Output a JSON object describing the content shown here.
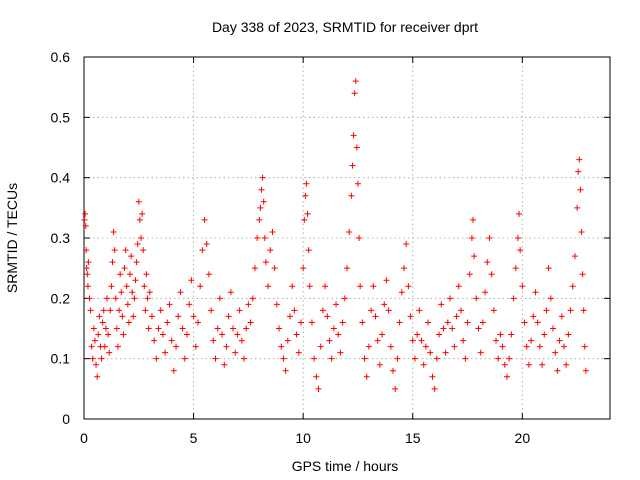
{
  "chart_data": {
    "type": "scatter",
    "title": "Day 338 of 2023, SRMTID for receiver dprt",
    "xlabel": "GPS time / hours",
    "ylabel": "SRMTID / TECUs",
    "xlim": [
      0,
      24
    ],
    "ylim": [
      0,
      0.6
    ],
    "xticks": [
      0,
      5,
      10,
      15,
      20
    ],
    "yticks": [
      0,
      0.1,
      0.2,
      0.3,
      0.4,
      0.5,
      0.6
    ],
    "xtick_labels": [
      "0",
      "5",
      "10",
      "15",
      "20"
    ],
    "ytick_labels": [
      "0",
      "0.1",
      "0.2",
      "0.3",
      "0.4",
      "0.5",
      "0.6"
    ],
    "grid": true,
    "marker": "plus",
    "series_color": "#ff0000",
    "series": [
      {
        "name": "dprt",
        "points": [
          [
            0.02,
            0.33
          ],
          [
            0.05,
            0.34
          ],
          [
            0.08,
            0.32
          ],
          [
            0.1,
            0.28
          ],
          [
            0.12,
            0.25
          ],
          [
            0.15,
            0.24
          ],
          [
            0.18,
            0.22
          ],
          [
            0.2,
            0.26
          ],
          [
            0.25,
            0.2
          ],
          [
            0.3,
            0.18
          ],
          [
            0.35,
            0.12
          ],
          [
            0.4,
            0.1
          ],
          [
            0.45,
            0.15
          ],
          [
            0.5,
            0.13
          ],
          [
            0.55,
            0.09
          ],
          [
            0.6,
            0.07
          ],
          [
            0.65,
            0.14
          ],
          [
            0.7,
            0.17
          ],
          [
            0.75,
            0.12
          ],
          [
            0.8,
            0.1
          ],
          [
            0.85,
            0.16
          ],
          [
            0.9,
            0.18
          ],
          [
            0.95,
            0.12
          ],
          [
            1.0,
            0.15
          ],
          [
            1.05,
            0.2
          ],
          [
            1.1,
            0.14
          ],
          [
            1.15,
            0.11
          ],
          [
            1.2,
            0.18
          ],
          [
            1.25,
            0.22
          ],
          [
            1.3,
            0.26
          ],
          [
            1.35,
            0.31
          ],
          [
            1.4,
            0.28
          ],
          [
            1.45,
            0.2
          ],
          [
            1.5,
            0.15
          ],
          [
            1.55,
            0.12
          ],
          [
            1.6,
            0.18
          ],
          [
            1.65,
            0.24
          ],
          [
            1.7,
            0.21
          ],
          [
            1.75,
            0.17
          ],
          [
            1.8,
            0.14
          ],
          [
            1.85,
            0.25
          ],
          [
            1.9,
            0.28
          ],
          [
            1.95,
            0.22
          ],
          [
            2.0,
            0.19
          ],
          [
            2.05,
            0.16
          ],
          [
            2.1,
            0.24
          ],
          [
            2.15,
            0.27
          ],
          [
            2.2,
            0.21
          ],
          [
            2.25,
            0.17
          ],
          [
            2.3,
            0.2
          ],
          [
            2.35,
            0.23
          ],
          [
            2.4,
            0.26
          ],
          [
            2.45,
            0.29
          ],
          [
            2.5,
            0.36
          ],
          [
            2.55,
            0.33
          ],
          [
            2.6,
            0.3
          ],
          [
            2.65,
            0.34
          ],
          [
            2.7,
            0.28
          ],
          [
            2.75,
            0.22
          ],
          [
            2.8,
            0.18
          ],
          [
            2.85,
            0.24
          ],
          [
            2.9,
            0.2
          ],
          [
            2.95,
            0.15
          ],
          [
            3.0,
            0.21
          ],
          [
            3.1,
            0.17
          ],
          [
            3.2,
            0.13
          ],
          [
            3.3,
            0.1
          ],
          [
            3.4,
            0.15
          ],
          [
            3.5,
            0.18
          ],
          [
            3.6,
            0.14
          ],
          [
            3.7,
            0.11
          ],
          [
            3.8,
            0.16
          ],
          [
            3.9,
            0.19
          ],
          [
            4.0,
            0.13
          ],
          [
            4.1,
            0.08
          ],
          [
            4.2,
            0.12
          ],
          [
            4.3,
            0.17
          ],
          [
            4.4,
            0.21
          ],
          [
            4.5,
            0.15
          ],
          [
            4.6,
            0.1
          ],
          [
            4.7,
            0.14
          ],
          [
            4.8,
            0.19
          ],
          [
            4.9,
            0.23
          ],
          [
            5.0,
            0.17
          ],
          [
            5.1,
            0.12
          ],
          [
            5.2,
            0.16
          ],
          [
            5.3,
            0.22
          ],
          [
            5.4,
            0.28
          ],
          [
            5.5,
            0.33
          ],
          [
            5.6,
            0.29
          ],
          [
            5.7,
            0.24
          ],
          [
            5.8,
            0.18
          ],
          [
            5.9,
            0.13
          ],
          [
            6.0,
            0.1
          ],
          [
            6.1,
            0.15
          ],
          [
            6.2,
            0.2
          ],
          [
            6.3,
            0.14
          ],
          [
            6.4,
            0.09
          ],
          [
            6.5,
            0.12
          ],
          [
            6.6,
            0.17
          ],
          [
            6.7,
            0.21
          ],
          [
            6.8,
            0.15
          ],
          [
            6.9,
            0.11
          ],
          [
            7.0,
            0.14
          ],
          [
            7.1,
            0.18
          ],
          [
            7.2,
            0.13
          ],
          [
            7.3,
            0.1
          ],
          [
            7.4,
            0.15
          ],
          [
            7.5,
            0.19
          ],
          [
            7.6,
            0.16
          ],
          [
            7.7,
            0.2
          ],
          [
            7.8,
            0.25
          ],
          [
            7.9,
            0.3
          ],
          [
            8.0,
            0.33
          ],
          [
            8.05,
            0.35
          ],
          [
            8.1,
            0.38
          ],
          [
            8.15,
            0.4
          ],
          [
            8.2,
            0.36
          ],
          [
            8.25,
            0.3
          ],
          [
            8.3,
            0.26
          ],
          [
            8.4,
            0.22
          ],
          [
            8.5,
            0.28
          ],
          [
            8.6,
            0.31
          ],
          [
            8.7,
            0.25
          ],
          [
            8.8,
            0.19
          ],
          [
            8.9,
            0.15
          ],
          [
            9.0,
            0.12
          ],
          [
            9.1,
            0.1
          ],
          [
            9.2,
            0.08
          ],
          [
            9.3,
            0.13
          ],
          [
            9.4,
            0.17
          ],
          [
            9.5,
            0.22
          ],
          [
            9.6,
            0.18
          ],
          [
            9.7,
            0.14
          ],
          [
            9.8,
            0.11
          ],
          [
            9.9,
            0.16
          ],
          [
            10.0,
            0.25
          ],
          [
            10.05,
            0.33
          ],
          [
            10.1,
            0.37
          ],
          [
            10.15,
            0.39
          ],
          [
            10.2,
            0.34
          ],
          [
            10.25,
            0.28
          ],
          [
            10.3,
            0.22
          ],
          [
            10.4,
            0.16
          ],
          [
            10.5,
            0.1
          ],
          [
            10.6,
            0.07
          ],
          [
            10.7,
            0.05
          ],
          [
            10.8,
            0.12
          ],
          [
            10.9,
            0.18
          ],
          [
            11.0,
            0.22
          ],
          [
            11.1,
            0.17
          ],
          [
            11.2,
            0.13
          ],
          [
            11.3,
            0.1
          ],
          [
            11.4,
            0.15
          ],
          [
            11.5,
            0.19
          ],
          [
            11.6,
            0.14
          ],
          [
            11.7,
            0.11
          ],
          [
            11.8,
            0.16
          ],
          [
            11.9,
            0.2
          ],
          [
            12.0,
            0.25
          ],
          [
            12.1,
            0.31
          ],
          [
            12.2,
            0.37
          ],
          [
            12.25,
            0.42
          ],
          [
            12.3,
            0.47
          ],
          [
            12.35,
            0.54
          ],
          [
            12.4,
            0.56
          ],
          [
            12.45,
            0.45
          ],
          [
            12.5,
            0.39
          ],
          [
            12.55,
            0.3
          ],
          [
            12.6,
            0.22
          ],
          [
            12.7,
            0.16
          ],
          [
            12.8,
            0.1
          ],
          [
            12.9,
            0.07
          ],
          [
            13.0,
            0.12
          ],
          [
            13.1,
            0.18
          ],
          [
            13.2,
            0.22
          ],
          [
            13.3,
            0.17
          ],
          [
            13.4,
            0.13
          ],
          [
            13.5,
            0.09
          ],
          [
            13.6,
            0.14
          ],
          [
            13.7,
            0.19
          ],
          [
            13.8,
            0.23
          ],
          [
            13.9,
            0.18
          ],
          [
            14.0,
            0.12
          ],
          [
            14.1,
            0.08
          ],
          [
            14.2,
            0.05
          ],
          [
            14.3,
            0.1
          ],
          [
            14.4,
            0.16
          ],
          [
            14.5,
            0.21
          ],
          [
            14.6,
            0.25
          ],
          [
            14.7,
            0.29
          ],
          [
            14.8,
            0.22
          ],
          [
            14.9,
            0.17
          ],
          [
            15.0,
            0.13
          ],
          [
            15.1,
            0.1
          ],
          [
            15.2,
            0.14
          ],
          [
            15.3,
            0.18
          ],
          [
            15.4,
            0.13
          ],
          [
            15.5,
            0.09
          ],
          [
            15.6,
            0.12
          ],
          [
            15.7,
            0.16
          ],
          [
            15.8,
            0.11
          ],
          [
            15.9,
            0.07
          ],
          [
            16.0,
            0.05
          ],
          [
            16.1,
            0.1
          ],
          [
            16.2,
            0.14
          ],
          [
            16.3,
            0.19
          ],
          [
            16.4,
            0.15
          ],
          [
            16.5,
            0.11
          ],
          [
            16.6,
            0.16
          ],
          [
            16.7,
            0.2
          ],
          [
            16.8,
            0.15
          ],
          [
            16.9,
            0.12
          ],
          [
            17.0,
            0.17
          ],
          [
            17.1,
            0.22
          ],
          [
            17.2,
            0.18
          ],
          [
            17.3,
            0.13
          ],
          [
            17.4,
            0.1
          ],
          [
            17.5,
            0.16
          ],
          [
            17.6,
            0.24
          ],
          [
            17.7,
            0.3
          ],
          [
            17.75,
            0.33
          ],
          [
            17.8,
            0.27
          ],
          [
            17.9,
            0.2
          ],
          [
            18.0,
            0.15
          ],
          [
            18.1,
            0.11
          ],
          [
            18.2,
            0.16
          ],
          [
            18.3,
            0.21
          ],
          [
            18.4,
            0.26
          ],
          [
            18.5,
            0.3
          ],
          [
            18.6,
            0.24
          ],
          [
            18.7,
            0.18
          ],
          [
            18.8,
            0.13
          ],
          [
            18.9,
            0.1
          ],
          [
            19.0,
            0.14
          ],
          [
            19.1,
            0.12
          ],
          [
            19.2,
            0.09
          ],
          [
            19.3,
            0.07
          ],
          [
            19.4,
            0.1
          ],
          [
            19.5,
            0.14
          ],
          [
            19.6,
            0.2
          ],
          [
            19.7,
            0.25
          ],
          [
            19.8,
            0.3
          ],
          [
            19.85,
            0.34
          ],
          [
            19.9,
            0.28
          ],
          [
            20.0,
            0.22
          ],
          [
            20.1,
            0.16
          ],
          [
            20.2,
            0.12
          ],
          [
            20.3,
            0.09
          ],
          [
            20.4,
            0.13
          ],
          [
            20.5,
            0.17
          ],
          [
            20.6,
            0.21
          ],
          [
            20.7,
            0.16
          ],
          [
            20.8,
            0.12
          ],
          [
            20.9,
            0.09
          ],
          [
            21.0,
            0.14
          ],
          [
            21.1,
            0.18
          ],
          [
            21.2,
            0.25
          ],
          [
            21.3,
            0.2
          ],
          [
            21.4,
            0.15
          ],
          [
            21.5,
            0.11
          ],
          [
            21.6,
            0.08
          ],
          [
            21.7,
            0.13
          ],
          [
            21.8,
            0.17
          ],
          [
            21.9,
            0.12
          ],
          [
            22.0,
            0.09
          ],
          [
            22.1,
            0.14
          ],
          [
            22.2,
            0.18
          ],
          [
            22.3,
            0.22
          ],
          [
            22.4,
            0.27
          ],
          [
            22.5,
            0.35
          ],
          [
            22.55,
            0.41
          ],
          [
            22.6,
            0.43
          ],
          [
            22.65,
            0.38
          ],
          [
            22.7,
            0.31
          ],
          [
            22.75,
            0.24
          ],
          [
            22.8,
            0.18
          ],
          [
            22.85,
            0.12
          ],
          [
            22.9,
            0.08
          ]
        ]
      }
    ]
  }
}
